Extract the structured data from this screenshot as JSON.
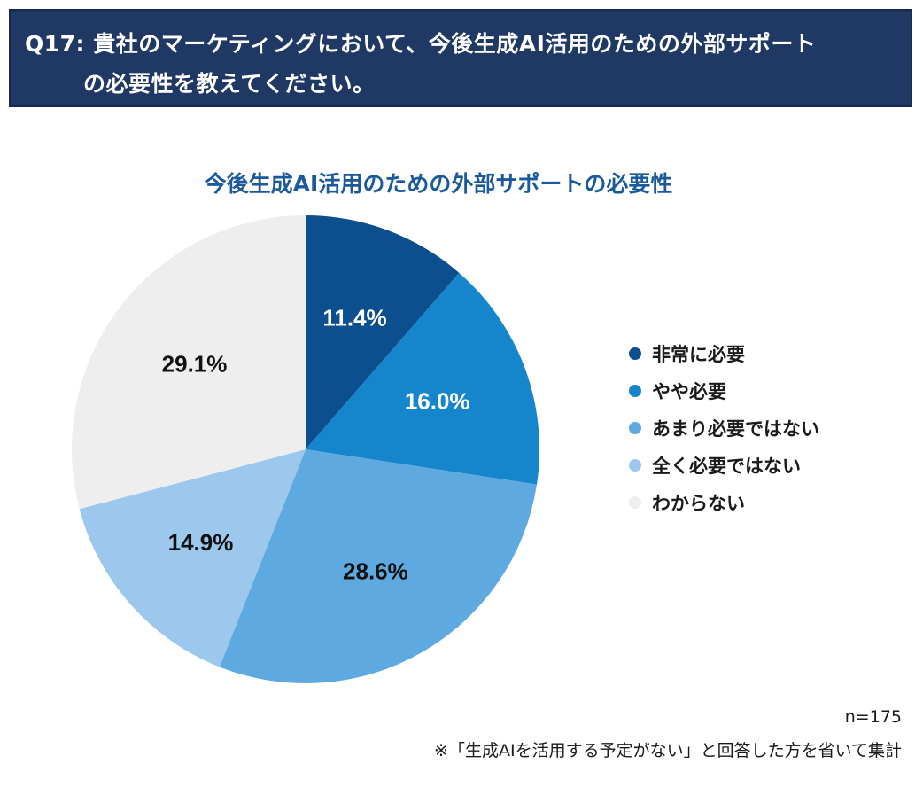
{
  "question": {
    "line1": "Q17: 貴社のマーケティングにおいて、今後生成AI活用のための外部サポート",
    "line2": "の必要性を教えてください。"
  },
  "chart_data": {
    "type": "pie",
    "title": "今後生成AI活用のための外部サポートの必要性",
    "categories": [
      "非常に必要",
      "やや必要",
      "あまり必要ではない",
      "全く必要ではない",
      "わからない"
    ],
    "values": [
      11.4,
      16.0,
      28.6,
      14.9,
      29.1
    ],
    "value_labels": [
      "11.4%",
      "16.0%",
      "28.6%",
      "14.9%",
      "29.1%"
    ],
    "colors": [
      "#0b4f8f",
      "#1585cc",
      "#5ea9e0",
      "#9cc8ee",
      "#eeeeee"
    ],
    "label_colors": [
      "#ffffff",
      "#ffffff",
      "#111111",
      "#111111",
      "#111111"
    ],
    "start_angle_deg": 0,
    "direction": "clockwise",
    "legend_position": "right"
  },
  "footer": {
    "n": "n=175",
    "note": "※「生成AIを活用する予定がない」と回答した方を省いて集計"
  }
}
